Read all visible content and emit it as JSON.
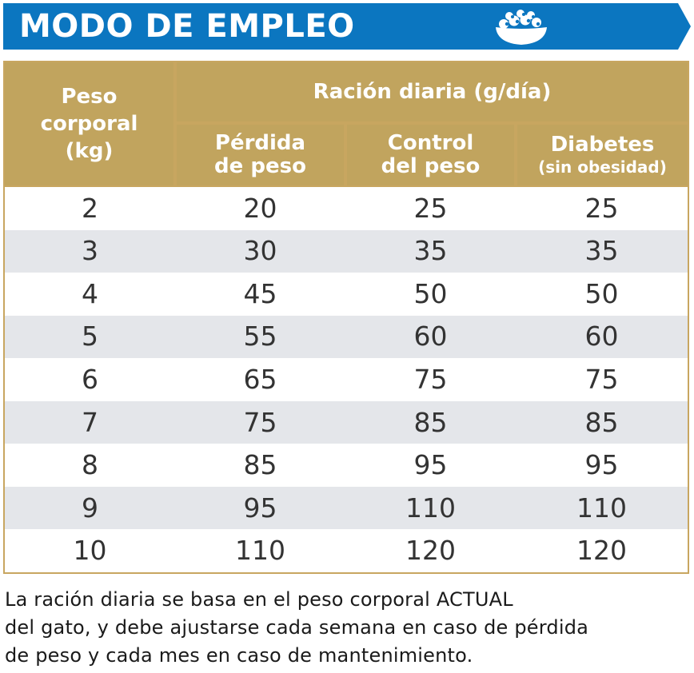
{
  "banner": {
    "title": "MODO DE EMPLEO",
    "icon": "food-bowl-icon",
    "color": "#0b76c0"
  },
  "table": {
    "header_color": "#c1a45e",
    "col_weight": [
      "Peso",
      "corporal",
      "(kg)"
    ],
    "group_label": "Ración diaria (g/día)",
    "col_perdida": [
      "Pérdida",
      "de peso"
    ],
    "col_control": [
      "Control",
      "del peso"
    ],
    "col_diabetes": [
      "Diabetes",
      "(sin obesidad)"
    ],
    "rows": [
      [
        "2",
        "20",
        "25",
        "25"
      ],
      [
        "3",
        "30",
        "35",
        "35"
      ],
      [
        "4",
        "45",
        "50",
        "50"
      ],
      [
        "5",
        "55",
        "60",
        "60"
      ],
      [
        "6",
        "65",
        "75",
        "75"
      ],
      [
        "7",
        "75",
        "85",
        "85"
      ],
      [
        "8",
        "85",
        "95",
        "95"
      ],
      [
        "9",
        "95",
        "110",
        "110"
      ],
      [
        "10",
        "110",
        "120",
        "120"
      ]
    ]
  },
  "footnote": {
    "lines": [
      "La ración diaria se basa en el peso corporal ACTUAL",
      "del gato, y debe ajustarse cada semana en caso de pérdida",
      "de peso y cada mes en caso de mantenimiento."
    ]
  }
}
